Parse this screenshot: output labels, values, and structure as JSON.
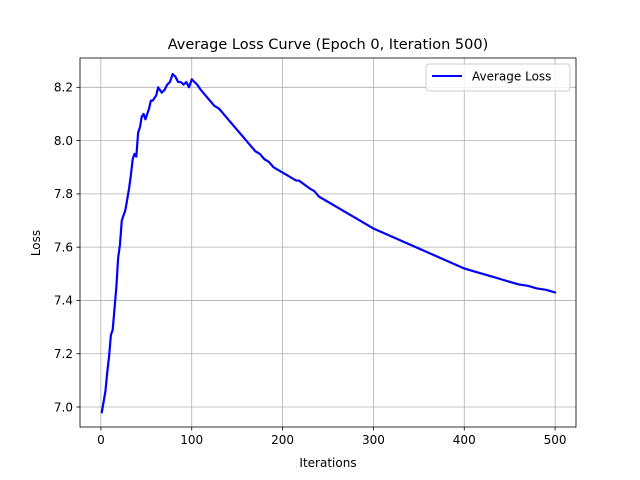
{
  "chart_data": {
    "type": "line",
    "title": "Average Loss Curve (Epoch 0, Iteration 500)",
    "xlabel": "Iterations",
    "ylabel": "Loss",
    "xlim": [
      -23,
      523
    ],
    "ylim": [
      6.925,
      8.31
    ],
    "xticks": [
      0,
      100,
      200,
      300,
      400,
      500
    ],
    "xtick_labels": [
      "0",
      "100",
      "200",
      "300",
      "400",
      "500"
    ],
    "yticks": [
      7.0,
      7.2,
      7.4,
      7.6,
      7.8,
      8.0,
      8.2
    ],
    "ytick_labels": [
      "7.0",
      "7.2",
      "7.4",
      "7.6",
      "7.8",
      "8.0",
      "8.2"
    ],
    "grid": true,
    "legend_position": "top-right",
    "series": [
      {
        "name": "Average Loss",
        "color": "#0000ff",
        "x": [
          1,
          3,
          5,
          7,
          9,
          11,
          13,
          15,
          17,
          19,
          21,
          23,
          25,
          27,
          29,
          31,
          33,
          35,
          37,
          39,
          41,
          43,
          45,
          47,
          49,
          51,
          53,
          55,
          57,
          59,
          61,
          63,
          65,
          67,
          70,
          73,
          76,
          79,
          82,
          85,
          88,
          91,
          94,
          97,
          100,
          103,
          106,
          110,
          115,
          120,
          125,
          130,
          135,
          140,
          145,
          150,
          155,
          160,
          165,
          170,
          175,
          180,
          185,
          190,
          195,
          200,
          205,
          210,
          215,
          218,
          222,
          226,
          230,
          235,
          240,
          250,
          260,
          270,
          280,
          290,
          300,
          310,
          320,
          330,
          340,
          350,
          360,
          370,
          380,
          390,
          400,
          410,
          420,
          430,
          440,
          450,
          460,
          470,
          480,
          490,
          500
        ],
        "y": [
          6.98,
          7.02,
          7.06,
          7.13,
          7.19,
          7.27,
          7.29,
          7.37,
          7.45,
          7.56,
          7.61,
          7.7,
          7.72,
          7.74,
          7.78,
          7.82,
          7.87,
          7.93,
          7.95,
          7.94,
          8.03,
          8.05,
          8.09,
          8.1,
          8.08,
          8.1,
          8.12,
          8.15,
          8.15,
          8.16,
          8.17,
          8.2,
          8.19,
          8.18,
          8.19,
          8.21,
          8.22,
          8.25,
          8.24,
          8.22,
          8.22,
          8.21,
          8.22,
          8.2,
          8.23,
          8.22,
          8.21,
          8.19,
          8.17,
          8.15,
          8.13,
          8.12,
          8.1,
          8.08,
          8.06,
          8.04,
          8.02,
          8.0,
          7.98,
          7.96,
          7.95,
          7.93,
          7.92,
          7.9,
          7.89,
          7.88,
          7.87,
          7.86,
          7.85,
          7.85,
          7.84,
          7.83,
          7.82,
          7.81,
          7.79,
          7.77,
          7.75,
          7.73,
          7.71,
          7.69,
          7.67,
          7.655,
          7.64,
          7.625,
          7.61,
          7.595,
          7.58,
          7.565,
          7.55,
          7.535,
          7.52,
          7.51,
          7.5,
          7.49,
          7.48,
          7.47,
          7.46,
          7.455,
          7.445,
          7.44,
          7.43
        ]
      }
    ]
  }
}
